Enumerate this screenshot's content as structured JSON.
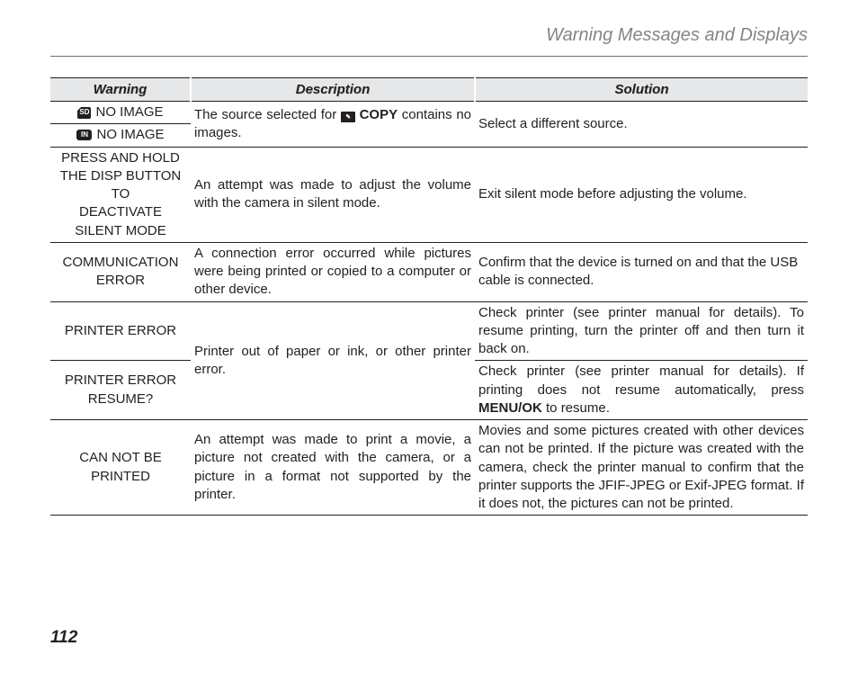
{
  "header": {
    "title": "Warning Messages and Displays"
  },
  "page_number": "112",
  "table": {
    "columns": {
      "warning": "Warning",
      "description": "Description",
      "solution": "Solution"
    },
    "rows": {
      "r1": {
        "warn1_icon": "SD",
        "warn1_text": "NO IMAGE",
        "warn2_icon": "IN",
        "warn2_text": "NO IMAGE",
        "desc_pre": "The source selected for ",
        "desc_copy_icon": "⎀",
        "desc_copy_bold": "COPY",
        "desc_post": " contains no images.",
        "sol": "Select a different source."
      },
      "r2": {
        "warn_l1": "PRESS AND HOLD",
        "warn_l2": "THE DISP BUTTON TO",
        "warn_l3": "DEACTIVATE SILENT MODE",
        "desc": "An attempt was made to adjust the volume with the camera in silent mode.",
        "sol": "Exit silent mode before adjusting the volume."
      },
      "r3": {
        "warn": "COMMUNICATION ERROR",
        "desc": "A connection error occurred while pictures were being printed or copied to a computer or other device.",
        "sol": "Confirm that the device is turned on and that the USB cable is connected."
      },
      "r4": {
        "warn": "PRINTER ERROR",
        "sol": "Check printer (see printer manual for details).  To resume printing, turn the printer off and then turn it back on."
      },
      "r45_desc": "Printer out of paper or ink, or other printer error.",
      "r5": {
        "warn_l1": "PRINTER ERROR",
        "warn_l2": "RESUME?",
        "sol_pre": "Check printer (see printer manual for details).  If printing does not resume automatically, press ",
        "sol_bold": "MENU/OK",
        "sol_post": " to resume."
      },
      "r6": {
        "warn": "CAN NOT BE PRINTED",
        "desc": "An attempt was made to print a movie, a picture not created with the camera, or a picture in a format not supported by the printer.",
        "sol": "Movies and some pictures created with other devices can not be printed.  If the picture was created with the camera, check the printer manual to confirm that the printer supports the JFIF-JPEG or Exif-JPEG format. If it does not, the pictures can not be printed."
      }
    }
  }
}
